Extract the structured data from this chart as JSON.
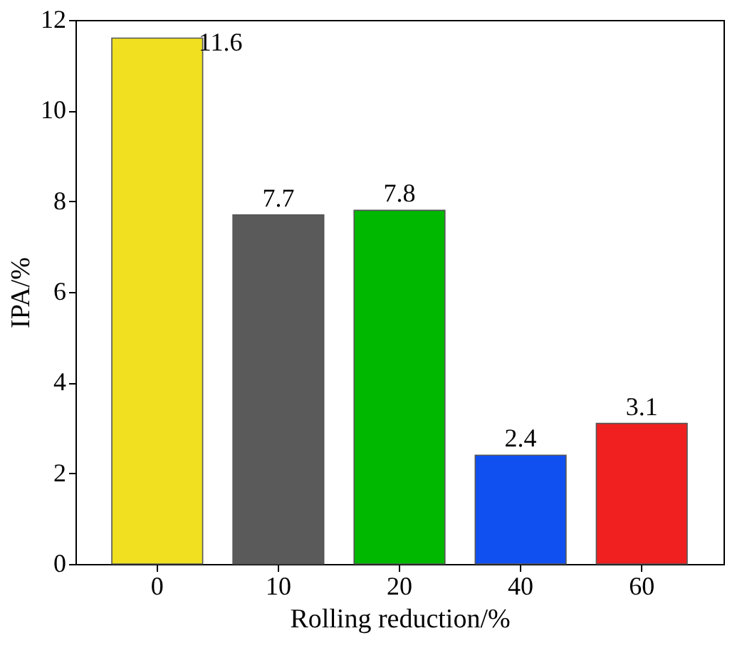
{
  "chart_data": {
    "type": "bar",
    "xlabel": "Rolling reduction/%",
    "ylabel": "IPA/%",
    "categories": [
      "0",
      "10",
      "20",
      "40",
      "60"
    ],
    "values": [
      11.6,
      7.7,
      7.8,
      2.4,
      3.1
    ],
    "colors": [
      "#f0e020",
      "#5a5a5a",
      "#00b800",
      "#1050f0",
      "#f02020"
    ],
    "ylim": [
      0,
      12
    ],
    "yticks": [
      0,
      2,
      4,
      6,
      8,
      10,
      12
    ],
    "grid": false,
    "data_labels": true
  }
}
